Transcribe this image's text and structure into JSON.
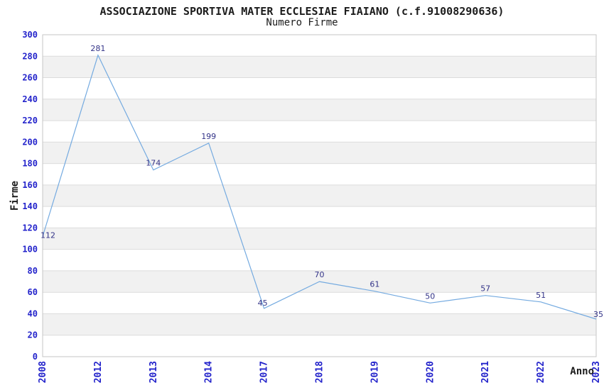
{
  "chart_data": {
    "type": "line",
    "title": "ASSOCIAZIONE SPORTIVA MATER ECCLESIAE FIAIANO (c.f.91008290636)",
    "subtitle": "Numero Firme",
    "xlabel": "Anno",
    "ylabel": "Firme",
    "categories": [
      "2008",
      "2012",
      "2013",
      "2014",
      "2017",
      "2018",
      "2019",
      "2020",
      "2021",
      "2022",
      "2023"
    ],
    "values": [
      112,
      281,
      174,
      199,
      45,
      70,
      61,
      50,
      57,
      51,
      35
    ],
    "ylim": [
      0,
      300
    ],
    "ytick_step": 20,
    "x_tick_label_rotation": 90,
    "grid": "horizontal",
    "plot_bands": "alternating-gray",
    "legend_position": "none",
    "markers": "none",
    "colors": {
      "line": "#74aae0",
      "axis_tick_labels": "#2323cb",
      "point_value_labels": "#333388",
      "band_gray": "#f1f1f1",
      "gridline": "#dcdcdc",
      "plot_border": "#c6c6c6",
      "text": "#1c1c1c",
      "background": "#ffffff"
    }
  }
}
